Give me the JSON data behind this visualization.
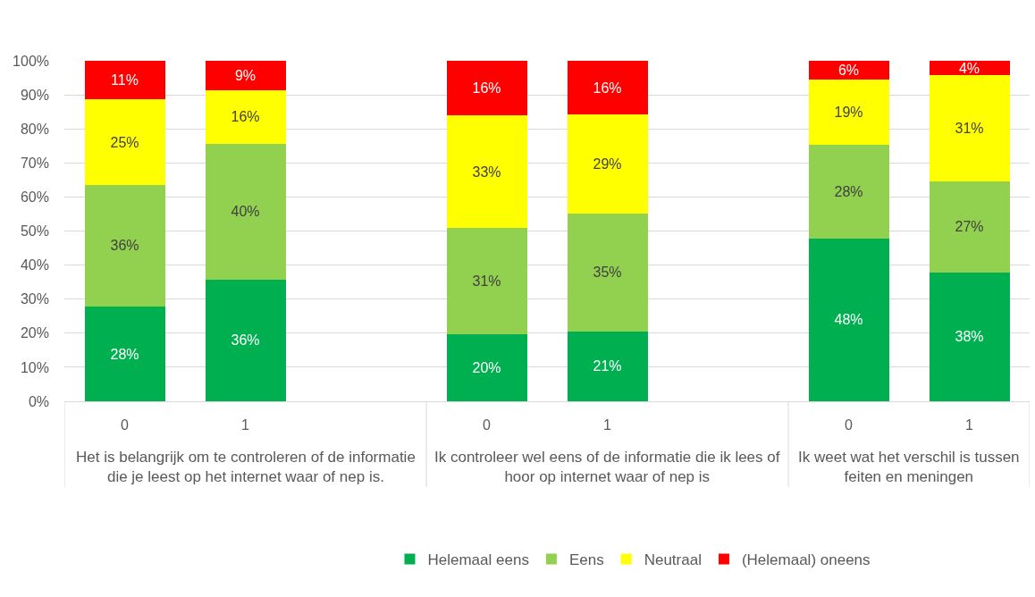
{
  "chart_data": {
    "type": "bar",
    "stacked": true,
    "categories": [
      "0",
      "1",
      null,
      "0",
      "1",
      null,
      "0",
      "1"
    ],
    "series": [
      {
        "name": "Helemaal eens",
        "color": "#00b050",
        "values": [
          27.8,
          35.7,
          null,
          19.6,
          20.6,
          null,
          47.8,
          37.9
        ],
        "value_labels": [
          "28%",
          "36%",
          null,
          "20%",
          "21%",
          null,
          "48%",
          "38%"
        ]
      },
      {
        "name": "Eens",
        "color": "#92d050",
        "values": [
          35.8,
          39.9,
          null,
          31.2,
          34.6,
          null,
          27.6,
          26.6
        ],
        "value_labels": [
          "36%",
          "40%",
          null,
          "31%",
          "35%",
          null,
          "28%",
          "27%"
        ]
      },
      {
        "name": "Neutraal",
        "color": "#ffff00",
        "values": [
          25.0,
          15.8,
          null,
          33.2,
          29.0,
          null,
          19.0,
          31.3
        ],
        "value_labels": [
          "25%",
          "16%",
          null,
          "33%",
          "29%",
          null,
          "19%",
          "31%"
        ]
      },
      {
        "name": "(Helemaal) oneens",
        "color": "#ff0000",
        "values": [
          11.4,
          8.6,
          null,
          16.0,
          15.8,
          null,
          5.6,
          4.2
        ],
        "value_labels": [
          "11%",
          "9%",
          null,
          "16%",
          "16%",
          null,
          "6%",
          "4%"
        ]
      }
    ],
    "ylim": [
      0,
      100
    ],
    "yticks": [
      {
        "value": 0,
        "label": "0%"
      },
      {
        "value": 10,
        "label": "10%"
      },
      {
        "value": 20,
        "label": "20%"
      },
      {
        "value": 30,
        "label": "30%"
      },
      {
        "value": 40,
        "label": "40%"
      },
      {
        "value": 50,
        "label": "50%"
      },
      {
        "value": 60,
        "label": "60%"
      },
      {
        "value": 70,
        "label": "70%"
      },
      {
        "value": 80,
        "label": "80%"
      },
      {
        "value": 90,
        "label": "90%"
      },
      {
        "value": 100,
        "label": "100%"
      }
    ],
    "grid": "y",
    "legend": "bottom",
    "annotations": [
      "Het is belangrijk om te controleren of de informatie\ndie je leest op het internet waar of nep is.",
      "Ik controleer wel eens of de informatie die ik lees of\nhoor op internet waar of nep is",
      "Ik weet wat het verschil is tussen\nfeiten en meningen"
    ]
  }
}
